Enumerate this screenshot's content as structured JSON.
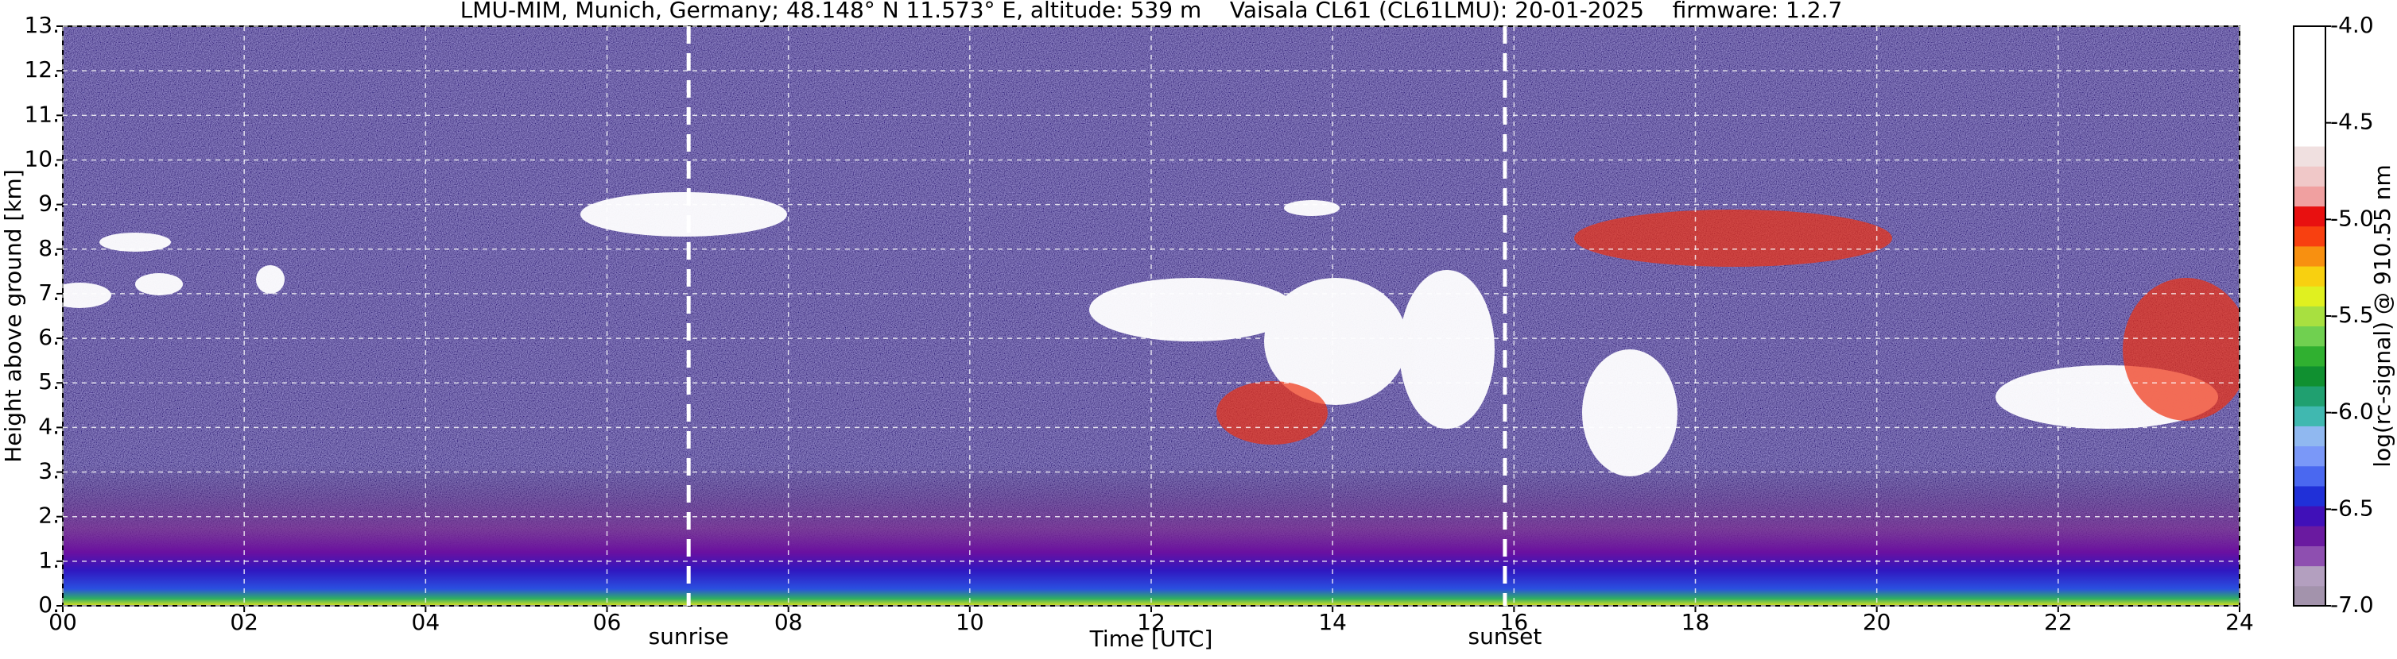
{
  "chart_data": {
    "type": "heatmap",
    "title": "LMU-MIM, Munich, Germany; 48.148° N 11.573° E, altitude: 539 m    Vaisala CL61 (CL61LMU): 20-01-2025    firmware: 1.2.7",
    "x_label": "Time [UTC]",
    "y_label": "Height above ground [km]",
    "xlim": [
      0,
      24
    ],
    "xticks": [
      {
        "value": 0,
        "label": "00"
      },
      {
        "value": 2,
        "label": "02"
      },
      {
        "value": 4,
        "label": "04"
      },
      {
        "value": 6,
        "label": "06"
      },
      {
        "value": 8,
        "label": "08"
      },
      10,
      12,
      14,
      16,
      18,
      20,
      22,
      24
    ],
    "ylim": [
      0,
      13
    ],
    "yticks": [
      {
        "value": 0,
        "label": "0."
      },
      {
        "value": 1,
        "label": "1."
      },
      {
        "value": 2,
        "label": "2."
      },
      {
        "value": 3,
        "label": "3."
      },
      {
        "value": 4,
        "label": "4."
      },
      {
        "value": 5,
        "label": "5."
      },
      {
        "value": 6,
        "label": "6."
      },
      {
        "value": 7,
        "label": "7."
      },
      {
        "value": 8,
        "label": "8."
      },
      {
        "value": 9,
        "label": "9."
      },
      {
        "value": 10,
        "label": "10."
      },
      {
        "value": 11,
        "label": "11."
      },
      {
        "value": 12,
        "label": "12."
      },
      {
        "value": 13,
        "label": "13."
      }
    ],
    "grid": true,
    "annotations": [
      {
        "text": "sunrise",
        "x": 6.9
      },
      {
        "text": "sunset",
        "x": 15.9
      }
    ],
    "colorbar": {
      "label": "log(rc-signal) @ 910.55 nm",
      "lim": [
        -7,
        -4
      ],
      "ticks": [
        {
          "value": -4,
          "label": "-4.0"
        },
        -4.5,
        {
          "value": -5,
          "label": "-5.0"
        },
        -5.5,
        {
          "value": -6,
          "label": "-6.0"
        },
        -6.5,
        {
          "value": -7,
          "label": "-7.0"
        }
      ],
      "colors": [
        "#a393ac",
        "#b39fbf",
        "#8e4fb0",
        "#6a1aa0",
        "#4010b8",
        "#2030d8",
        "#4a68f0",
        "#7a98f8",
        "#90b8f0",
        "#40b8b0",
        "#20a070",
        "#109030",
        "#30b030",
        "#70d050",
        "#a8e040",
        "#e0f020",
        "#f8d010",
        "#f89010",
        "#f84010",
        "#e81010",
        "#f0a0a0",
        "#f0c8c8",
        "#f0e0e0",
        "#ffffff",
        "#ffffff",
        "#ffffff",
        "#ffffff",
        "#ffffff",
        "#ffffff"
      ]
    }
  }
}
